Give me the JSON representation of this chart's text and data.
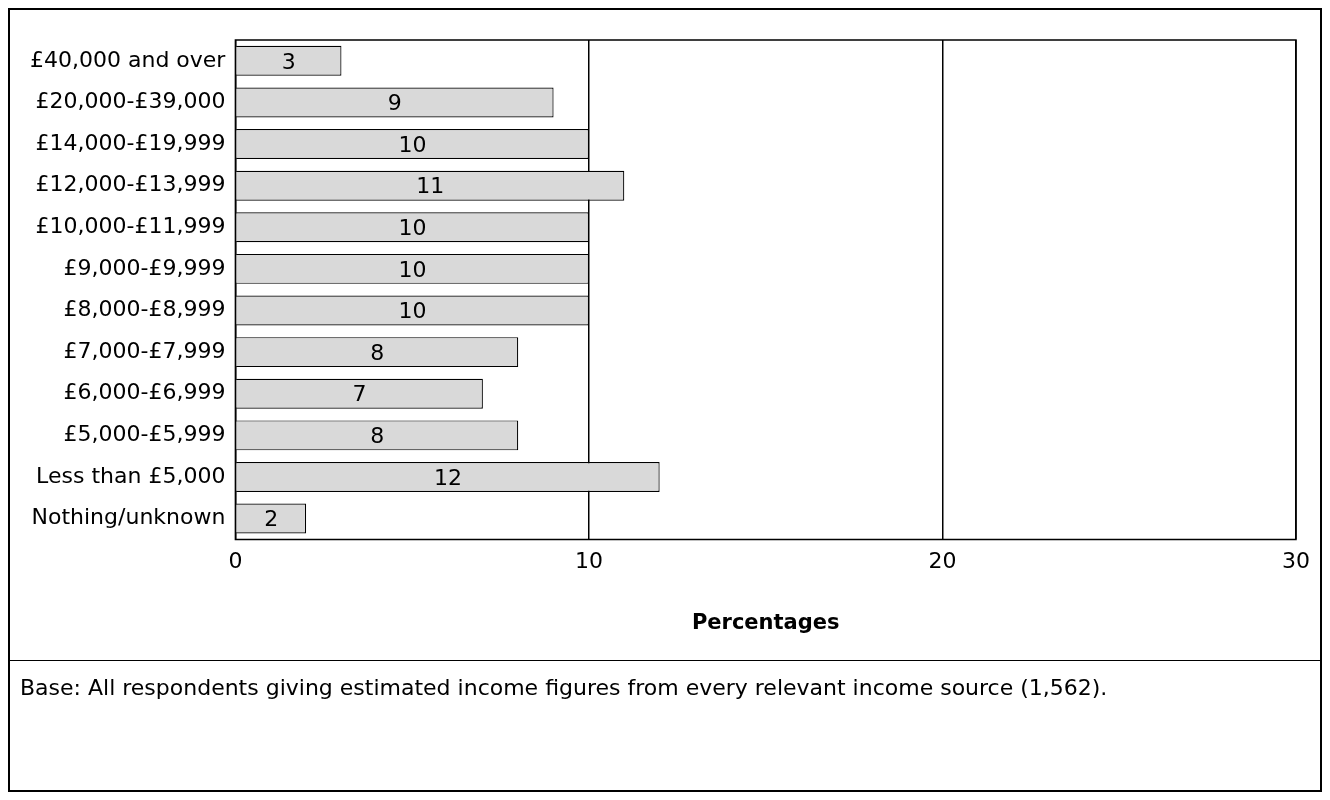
{
  "chart_data": {
    "type": "bar",
    "orientation": "horizontal",
    "categories": [
      "£40,000 and over",
      "£20,000-£39,000",
      "£14,000-£19,999",
      "£12,000-£13,999",
      "£10,000-£11,999",
      "£9,000-£9,999",
      "£8,000-£8,999",
      "£7,000-£7,999",
      "£6,000-£6,999",
      "£5,000-£5,999",
      "Less than £5,000",
      "Nothing/unknown"
    ],
    "values": [
      3,
      9,
      10,
      11,
      10,
      10,
      10,
      8,
      7,
      8,
      12,
      2
    ],
    "color": "#d9d9d9",
    "xlim": [
      0,
      30
    ],
    "xticks": [
      0,
      10,
      20,
      30
    ],
    "xlabel": "Percentages",
    "grid": "x",
    "legend": false,
    "data_labels": true,
    "annotations": [
      "Base: All respondents giving estimated income figures from every relevant income source (1,562)."
    ]
  }
}
